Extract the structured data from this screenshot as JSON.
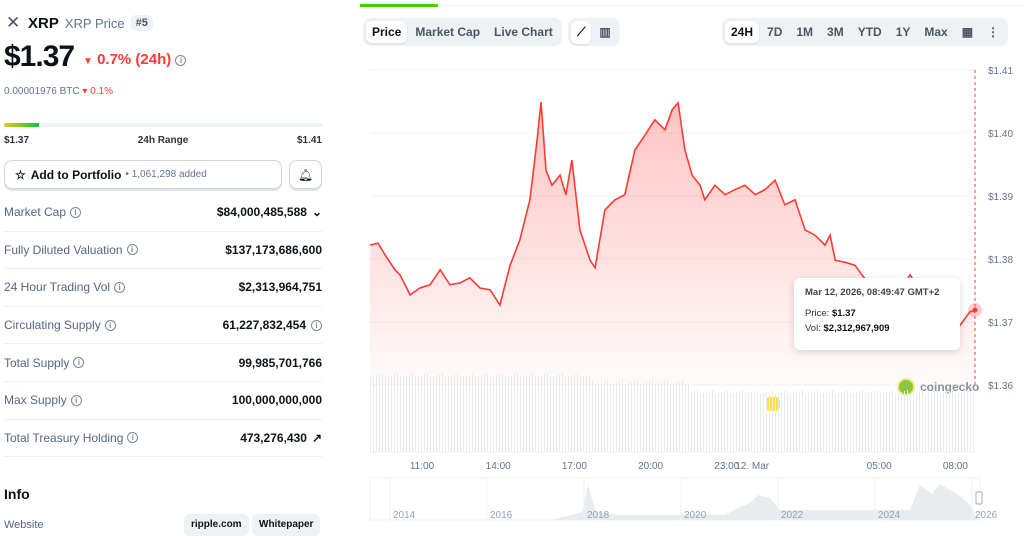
{
  "header": {
    "symbol": "XRP",
    "subtitle": "XRP Price",
    "rank": "#5"
  },
  "price": {
    "value": "$1.37",
    "change": "0.7% (24h)",
    "btc": "0.00001976 BTC",
    "btc_change": "0.1%",
    "down_color": "#ff3a33"
  },
  "range": {
    "low": "$1.37",
    "label": "24h Range",
    "high": "$1.41",
    "position_fraction": 0.11
  },
  "portfolio": {
    "label": "Add to Portfolio",
    "count": "• 1,061,298 added"
  },
  "stats": [
    {
      "label": "Market Cap",
      "value": "$84,000,485,588",
      "extra": "chevron"
    },
    {
      "label": "Fully Diluted Valuation",
      "value": "$137,173,686,600"
    },
    {
      "label": "24 Hour Trading Vol",
      "value": "$2,313,964,751"
    },
    {
      "label": "Circulating Supply",
      "value": "61,227,832,454",
      "extra": "info"
    },
    {
      "label": "Total Supply",
      "value": "99,985,701,766"
    },
    {
      "label": "Max Supply",
      "value": "100,000,000,000"
    },
    {
      "label": "Total Treasury Holding",
      "value": "473,276,430",
      "extra": "external"
    }
  ],
  "info": {
    "title": "Info",
    "website_label": "Website",
    "links": [
      "ripple.com",
      "Whitepaper"
    ]
  },
  "chart_tabs": [
    "Price",
    "Market Cap",
    "Live Chart"
  ],
  "chart_type_icons": [
    "line-chart-icon",
    "candlestick-chart-icon"
  ],
  "ranges": [
    "24H",
    "7D",
    "1M",
    "3M",
    "YTD",
    "1Y",
    "Max"
  ],
  "active_range": "24H",
  "tooltip": {
    "date": "Mar 12, 2026, 08:49:47 GMT+2",
    "price_label": "Price:",
    "price": "$1.37",
    "vol_label": "Vol:",
    "vol": "$2,312,967,909"
  },
  "watermark": "coingecko",
  "chart_data": {
    "type": "area",
    "line_color": "#ff3a33",
    "ylim": [
      1.36,
      1.41
    ],
    "y_ticks": [
      "$1.41",
      "$1.40",
      "$1.39",
      "$1.38",
      "$1.37",
      "$1.36"
    ],
    "x_ticks": [
      "11:00",
      "14:00",
      "17:00",
      "20:00",
      "23:00",
      "12. Mar",
      "05:00",
      "08:00"
    ],
    "points": [
      [
        "08:57",
        1.3822
      ],
      [
        "09:16",
        1.3825
      ],
      [
        "09:33",
        1.3806
      ],
      [
        "09:56",
        1.3783
      ],
      [
        "10:08",
        1.3775
      ],
      [
        "10:32",
        1.3743
      ],
      [
        "10:55",
        1.3754
      ],
      [
        "11:19",
        1.3759
      ],
      [
        "11:43",
        1.3783
      ],
      [
        "12:06",
        1.3759
      ],
      [
        "12:30",
        1.3762
      ],
      [
        "12:53",
        1.377
      ],
      [
        "13:17",
        1.3754
      ],
      [
        "13:41",
        1.3751
      ],
      [
        "14:04",
        1.3727
      ],
      [
        "14:28",
        1.379
      ],
      [
        "14:51",
        1.383
      ],
      [
        "15:15",
        1.3894
      ],
      [
        "15:32",
        1.3989
      ],
      [
        "15:41",
        1.4049
      ],
      [
        "15:53",
        1.3941
      ],
      [
        "16:07",
        1.3917
      ],
      [
        "16:26",
        1.3933
      ],
      [
        "16:40",
        1.3902
      ],
      [
        "16:54",
        1.3957
      ],
      [
        "17:13",
        1.3846
      ],
      [
        "17:37",
        1.3798
      ],
      [
        "17:49",
        1.3786
      ],
      [
        "18:12",
        1.3878
      ],
      [
        "18:36",
        1.3894
      ],
      [
        "18:59",
        1.3902
      ],
      [
        "19:23",
        1.3973
      ],
      [
        "19:47",
        1.3997
      ],
      [
        "20:10",
        1.4021
      ],
      [
        "20:34",
        1.4005
      ],
      [
        "20:51",
        1.4037
      ],
      [
        "21:05",
        1.4048
      ],
      [
        "21:21",
        1.3973
      ],
      [
        "21:38",
        1.3933
      ],
      [
        "21:57",
        1.3917
      ],
      [
        "22:08",
        1.3894
      ],
      [
        "22:32",
        1.3917
      ],
      [
        "22:56",
        1.3902
      ],
      [
        "23:19",
        1.391
      ],
      [
        "23:43",
        1.3917
      ],
      [
        "00:07",
        1.3902
      ],
      [
        "00:30",
        1.391
      ],
      [
        "00:54",
        1.3925
      ],
      [
        "01:17",
        1.3886
      ],
      [
        "01:41",
        1.3894
      ],
      [
        "02:05",
        1.3846
      ],
      [
        "02:28",
        1.3838
      ],
      [
        "02:52",
        1.3822
      ],
      [
        "03:04",
        1.3838
      ],
      [
        "03:16",
        1.3798
      ],
      [
        "03:39",
        1.3795
      ],
      [
        "04:03",
        1.379
      ],
      [
        "04:19",
        1.3775
      ],
      [
        "04:38",
        1.3759
      ],
      [
        "05:02",
        1.3751
      ],
      [
        "05:25",
        1.3743
      ],
      [
        "05:49",
        1.3751
      ],
      [
        "06:13",
        1.3775
      ],
      [
        "06:36",
        1.3751
      ],
      [
        "07:00",
        1.3735
      ],
      [
        "07:24",
        1.3719
      ],
      [
        "07:47",
        1.3703
      ],
      [
        "08:11",
        1.3695
      ],
      [
        "08:34",
        1.3716
      ],
      [
        "08:46",
        1.3719
      ]
    ],
    "navigator_ticks": [
      "2014",
      "2016",
      "2018",
      "2020",
      "2022",
      "2024",
      "2026"
    ]
  }
}
